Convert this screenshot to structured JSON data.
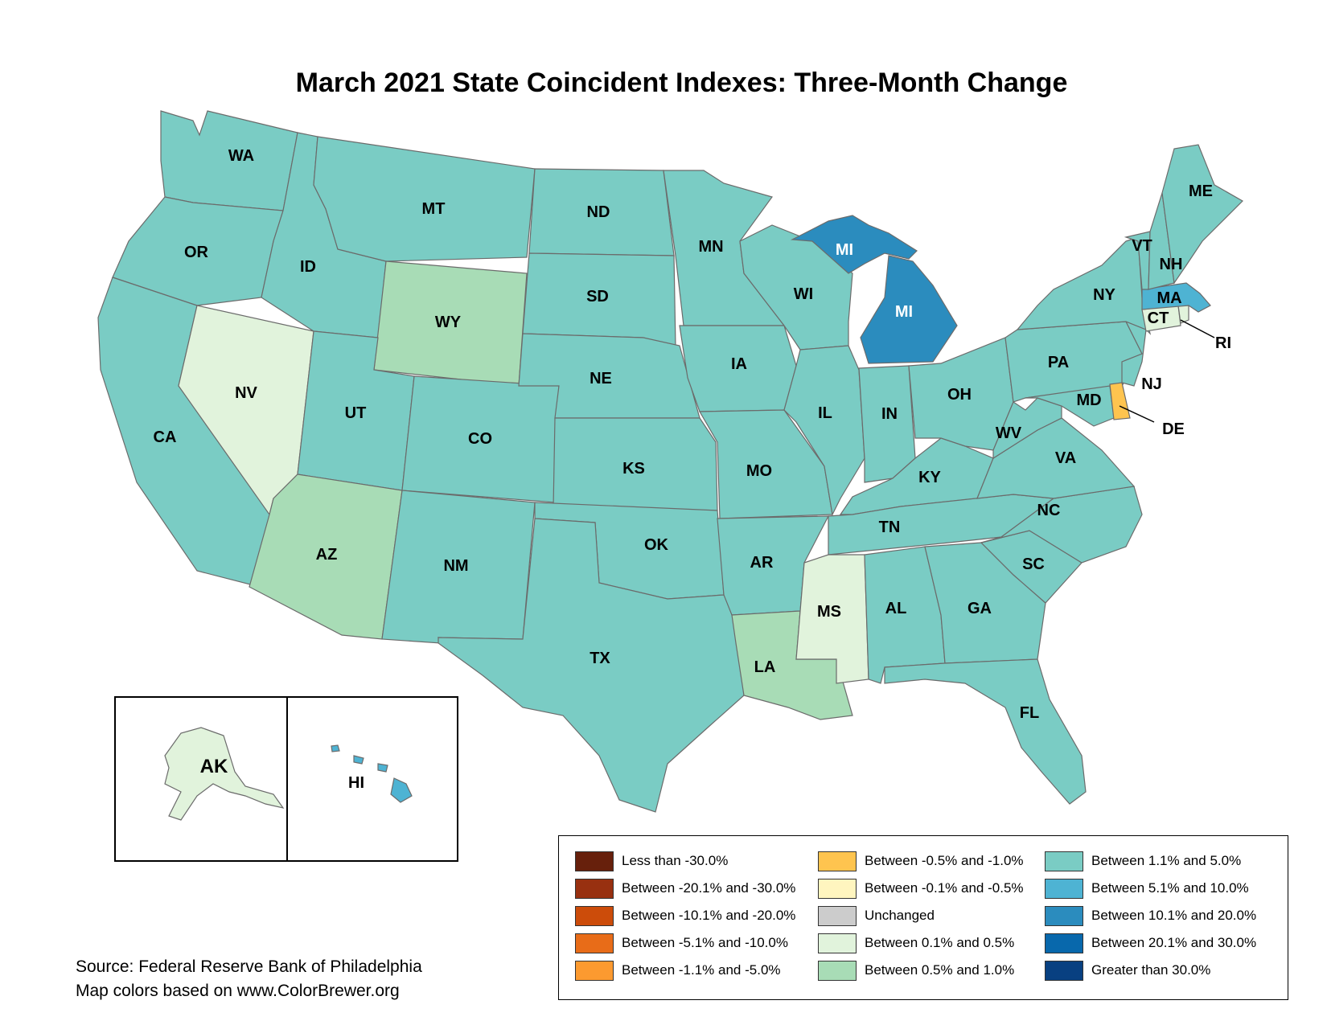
{
  "title": "March 2021 State Coincident Indexes: Three-Month Change",
  "source_lines": [
    "Source: Federal Reserve Bank of Philadelphia",
    "Map colors based on www.ColorBrewer.org"
  ],
  "colors": {
    "lt_neg30": "#67200c",
    "neg20_30": "#983010",
    "neg10_20": "#cc4c0a",
    "neg5_10": "#e86c18",
    "neg1_5": "#fc9a30",
    "neg05_1": "#fec44f",
    "neg01_05": "#fff5bf",
    "unchanged": "#cccccc",
    "pos01_05": "#e1f3dc",
    "pos05_1": "#a8dcb6",
    "pos1_5": "#7accc4",
    "pos5_10": "#4eb3d3",
    "pos10_20": "#2b8cbe",
    "pos20_30": "#0868ac",
    "gt30": "#084081"
  },
  "legend": [
    {
      "label": "Less than -30.0%",
      "color": "#67200c"
    },
    {
      "label": "Between -20.1% and -30.0%",
      "color": "#983010"
    },
    {
      "label": "Between -10.1% and -20.0%",
      "color": "#cc4c0a"
    },
    {
      "label": "Between -5.1% and -10.0%",
      "color": "#e86c18"
    },
    {
      "label": "Between -1.1% and -5.0%",
      "color": "#fc9a30"
    },
    {
      "label": "Between -0.5% and -1.0%",
      "color": "#fec44f"
    },
    {
      "label": "Between -0.1% and -0.5%",
      "color": "#fff5bf"
    },
    {
      "label": "Unchanged",
      "color": "#cccccc"
    },
    {
      "label": "Between 0.1% and 0.5%",
      "color": "#e1f3dc"
    },
    {
      "label": "Between 0.5% and 1.0%",
      "color": "#a8dcb6"
    },
    {
      "label": "Between 1.1% and 5.0%",
      "color": "#7accc4"
    },
    {
      "label": "Between 5.1% and 10.0%",
      "color": "#4eb3d3"
    },
    {
      "label": "Between 10.1% and 20.0%",
      "color": "#2b8cbe"
    },
    {
      "label": "Between 20.1% and 30.0%",
      "color": "#0868ac"
    },
    {
      "label": "Greater than 30.0%",
      "color": "#084081"
    }
  ],
  "state_labels": {
    "WA": "WA",
    "OR": "OR",
    "CA": "CA",
    "ID": "ID",
    "NV": "NV",
    "MT": "MT",
    "WY": "WY",
    "UT": "UT",
    "AZ": "AZ",
    "CO": "CO",
    "NM": "NM",
    "ND": "ND",
    "SD": "SD",
    "NE": "NE",
    "KS": "KS",
    "OK": "OK",
    "TX": "TX",
    "MN": "MN",
    "IA": "IA",
    "MO": "MO",
    "AR": "AR",
    "LA": "LA",
    "WI": "WI",
    "IL": "IL",
    "MI": "MI",
    "IN": "IN",
    "OH": "OH",
    "KY": "KY",
    "TN": "TN",
    "MS": "MS",
    "AL": "AL",
    "GA": "GA",
    "FL": "FL",
    "SC": "SC",
    "NC": "NC",
    "VA": "VA",
    "WV": "WV",
    "PA": "PA",
    "NY": "NY",
    "NJ": "NJ",
    "DE": "DE",
    "MD": "MD",
    "CT": "CT",
    "RI": "RI",
    "MA": "MA",
    "VT": "VT",
    "NH": "NH",
    "ME": "ME",
    "AK": "AK",
    "HI": "HI"
  }
}
